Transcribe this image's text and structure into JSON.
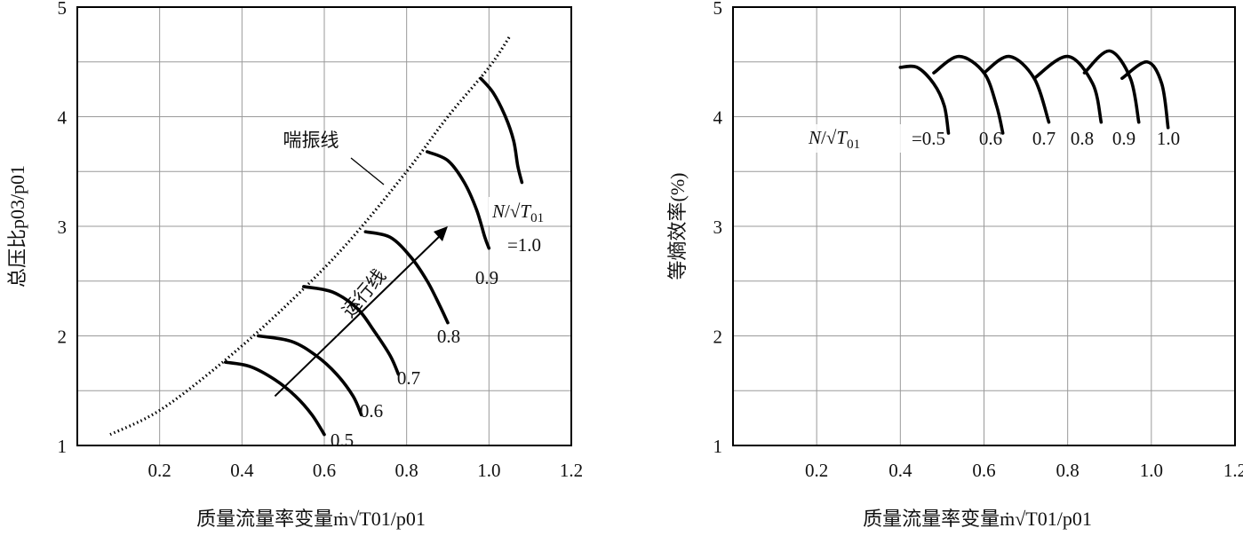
{
  "chart_data": [
    {
      "type": "line",
      "xlabel": "质量流量率变量ṁ√T01/p01",
      "ylabel": "总压比p03/p01",
      "xlim": [
        0,
        1.2
      ],
      "ylim": [
        1,
        5
      ],
      "xticks": [
        "0.2",
        "0.4",
        "0.6",
        "0.8",
        "1.0",
        "1.2"
      ],
      "yticks": [
        "1",
        "2",
        "3",
        "4",
        "5"
      ],
      "grid": true,
      "surge_line": {
        "label": "喘振线",
        "style": "dotted",
        "x": [
          0.08,
          0.2,
          0.35,
          0.5,
          0.65,
          0.8,
          0.9,
          1.0,
          1.05
        ],
        "y": [
          1.1,
          1.32,
          1.75,
          2.25,
          2.82,
          3.5,
          4.0,
          4.45,
          4.73
        ]
      },
      "operating_line": {
        "label": "运行线",
        "x": [
          0.48,
          0.9
        ],
        "y": [
          1.45,
          3.0
        ]
      },
      "speed_lines_title": "N/√T01",
      "series": [
        {
          "name": "0.5",
          "x": [
            0.36,
            0.42,
            0.48,
            0.53,
            0.57,
            0.6
          ],
          "y": [
            1.76,
            1.72,
            1.6,
            1.45,
            1.28,
            1.1
          ]
        },
        {
          "name": "0.6",
          "x": [
            0.44,
            0.52,
            0.58,
            0.63,
            0.67,
            0.69
          ],
          "y": [
            2.0,
            1.95,
            1.82,
            1.65,
            1.45,
            1.28
          ]
        },
        {
          "name": "0.7",
          "x": [
            0.55,
            0.62,
            0.68,
            0.72,
            0.76,
            0.78
          ],
          "y": [
            2.45,
            2.4,
            2.25,
            2.05,
            1.82,
            1.65
          ]
        },
        {
          "name": "0.8",
          "x": [
            0.7,
            0.76,
            0.81,
            0.85,
            0.88,
            0.9
          ],
          "y": [
            2.95,
            2.9,
            2.72,
            2.5,
            2.28,
            2.12
          ]
        },
        {
          "name": "0.9",
          "x": [
            0.85,
            0.9,
            0.94,
            0.97,
            0.99,
            1.0
          ],
          "y": [
            3.68,
            3.6,
            3.4,
            3.15,
            2.9,
            2.8
          ]
        },
        {
          "name": "=1.0",
          "x": [
            0.98,
            1.01,
            1.04,
            1.06,
            1.07,
            1.08
          ],
          "y": [
            4.35,
            4.22,
            4.0,
            3.78,
            3.55,
            3.4
          ]
        }
      ],
      "speed_labels": [
        "=0.5",
        "0.6",
        "0.7",
        "0.8",
        "0.9",
        "=1.0"
      ]
    },
    {
      "type": "line",
      "xlabel": "质量流量率变量ṁ√T01/p01",
      "ylabel": "等熵效率(%)",
      "xlim": [
        0,
        1.2
      ],
      "ylim": [
        1,
        5
      ],
      "xticks": [
        "0.2",
        "0.4",
        "0.6",
        "0.8",
        "1.0",
        "1.2"
      ],
      "yticks": [
        "1",
        "2",
        "3",
        "4",
        "5"
      ],
      "grid": true,
      "speed_lines_title": "N/√T01",
      "series": [
        {
          "name": "=0.5",
          "x": [
            0.4,
            0.44,
            0.48,
            0.505,
            0.515
          ],
          "y": [
            4.45,
            4.45,
            4.3,
            4.1,
            3.85
          ]
        },
        {
          "name": "0.6",
          "x": [
            0.48,
            0.54,
            0.6,
            0.63,
            0.645
          ],
          "y": [
            4.4,
            4.55,
            4.4,
            4.1,
            3.85
          ]
        },
        {
          "name": "0.7",
          "x": [
            0.6,
            0.66,
            0.72,
            0.755
          ],
          "y": [
            4.4,
            4.55,
            4.35,
            3.95
          ]
        },
        {
          "name": "0.8",
          "x": [
            0.72,
            0.8,
            0.86,
            0.88
          ],
          "y": [
            4.35,
            4.55,
            4.3,
            3.95
          ]
        },
        {
          "name": "0.9",
          "x": [
            0.84,
            0.9,
            0.95,
            0.97
          ],
          "y": [
            4.4,
            4.6,
            4.35,
            3.95
          ]
        },
        {
          "name": "1.0",
          "x": [
            0.93,
            0.99,
            1.025,
            1.04
          ],
          "y": [
            4.35,
            4.5,
            4.3,
            3.9
          ]
        }
      ],
      "speed_labels": [
        "=0.5",
        "0.6",
        "0.7",
        "0.8",
        "0.9",
        "1.0"
      ]
    }
  ]
}
